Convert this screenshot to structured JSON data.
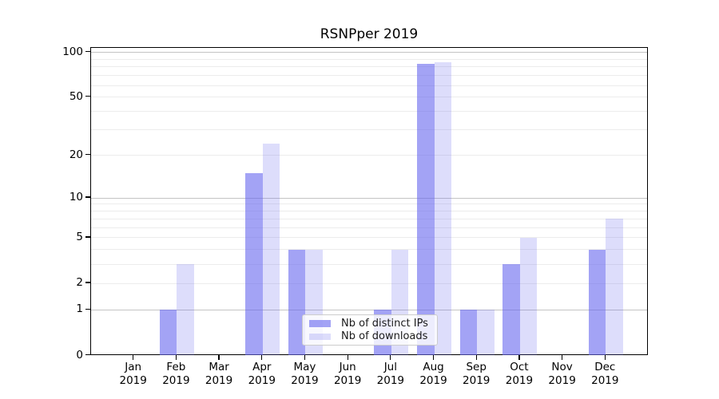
{
  "title": "RSNPper 2019",
  "chart_data": {
    "type": "bar",
    "title": "RSNPper 2019",
    "months": [
      "Jan",
      "Feb",
      "Mar",
      "Apr",
      "May",
      "Jun",
      "Jul",
      "Aug",
      "Sep",
      "Oct",
      "Nov",
      "Dec"
    ],
    "year_label": "2019",
    "series": [
      {
        "name": "Nb of distinct IPs",
        "color": "rgba(102,102,238,0.60)",
        "values": [
          0,
          1,
          0,
          15,
          4,
          0,
          1,
          84,
          1,
          3,
          0,
          4
        ]
      },
      {
        "name": "Nb of downloads",
        "color": "rgba(102,102,238,0.22)",
        "values": [
          0,
          3,
          0,
          24,
          4,
          0,
          4,
          86,
          1,
          5,
          0,
          7
        ]
      }
    ],
    "yscale": "log1p",
    "ylim": [
      0,
      107
    ],
    "ytick_values": [
      0,
      1,
      2,
      5,
      10,
      20,
      50,
      100
    ],
    "major_gridlines": [
      1,
      10,
      100
    ],
    "minor_gridlines": [
      2,
      3,
      4,
      5,
      6,
      7,
      8,
      9,
      20,
      30,
      40,
      50,
      60,
      70,
      80,
      90
    ],
    "grid": "on",
    "legend_position": "lower center"
  },
  "colors": {
    "series1_fill": "rgba(102,102,238,0.60)",
    "series2_fill": "rgba(102,102,238,0.22)",
    "major_grid": "#c4c4c4",
    "minor_grid": "#ececec",
    "spine": "#000000",
    "background": "#ffffff",
    "legend_border": "#cccccc"
  }
}
